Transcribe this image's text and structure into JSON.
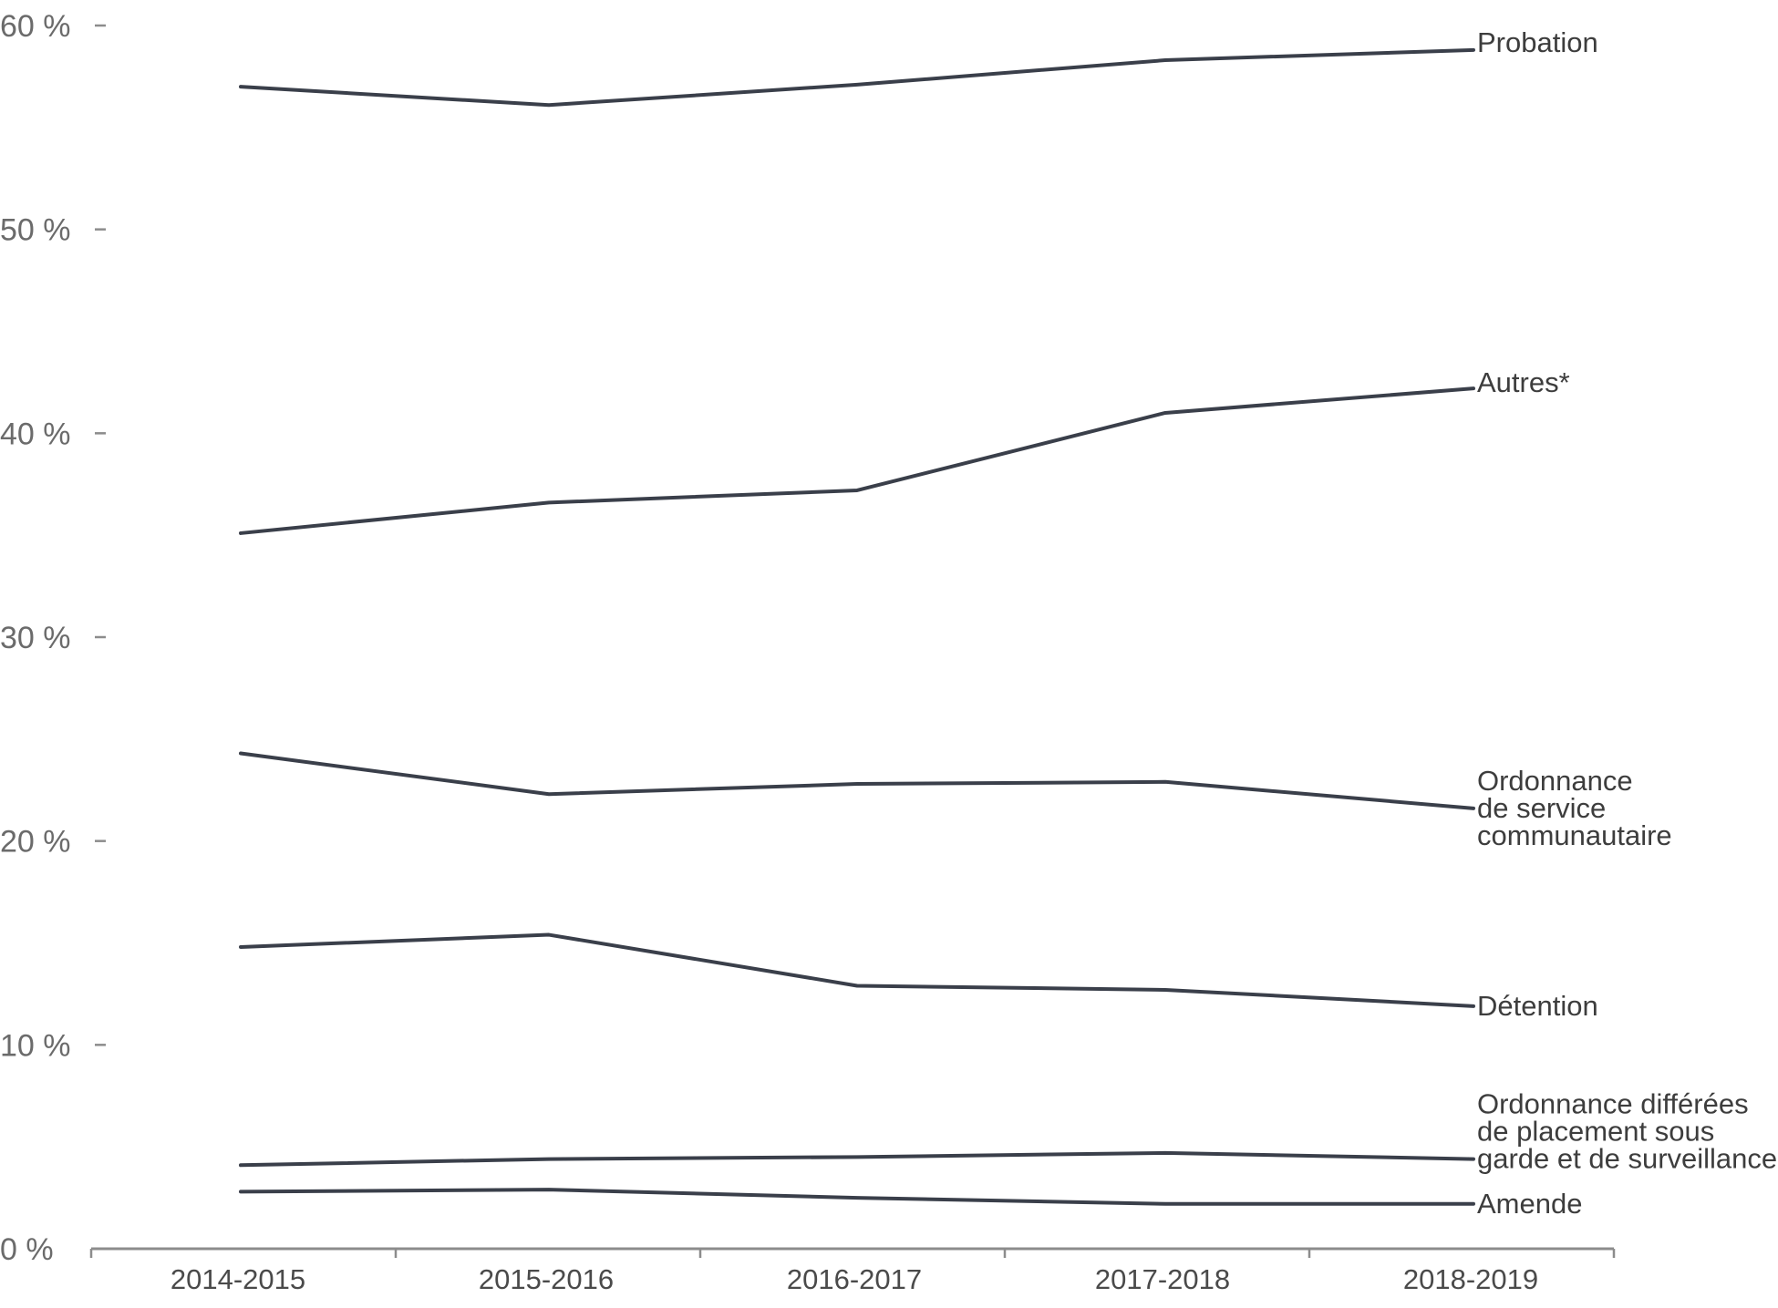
{
  "chart_data": {
    "type": "line",
    "title": "",
    "xlabel": "",
    "ylabel": "",
    "categories": [
      "2014-2015",
      "2015-2016",
      "2016-2017",
      "2017-2018",
      "2018-2019"
    ],
    "ylim": [
      0,
      60
    ],
    "yticks": [
      0,
      10,
      20,
      30,
      40,
      50,
      60
    ],
    "ytick_labels": [
      "0 %",
      "10 %",
      "20 %",
      "30 %",
      "40 %",
      "50 %",
      "60 %"
    ],
    "grid": false,
    "legend": "none (series labelled at right end of lines)",
    "line_color": "#3a3f4a",
    "axis_color": "#8c8c8c",
    "series": [
      {
        "name": "Probation",
        "label_lines": [
          "Probation"
        ],
        "values": [
          57.0,
          56.1,
          57.1,
          58.3,
          58.8
        ]
      },
      {
        "name": "Autres*",
        "label_lines": [
          "Autres*"
        ],
        "values": [
          35.1,
          36.6,
          37.2,
          41.0,
          42.2
        ]
      },
      {
        "name": "Ordonnance de service communautaire",
        "label_lines": [
          "Ordonnance",
          "de service",
          "communautaire"
        ],
        "values": [
          24.3,
          22.3,
          22.8,
          22.9,
          21.6
        ]
      },
      {
        "name": "Détention",
        "label_lines": [
          "Détention"
        ],
        "values": [
          14.8,
          15.4,
          12.9,
          12.7,
          11.9
        ]
      },
      {
        "name": "Ordonnance différées de placement sous garde et de surveillance",
        "label_lines": [
          "Ordonnance différées",
          "de placement sous",
          "garde et de surveillance"
        ],
        "values": [
          4.1,
          4.4,
          4.5,
          4.7,
          4.4
        ]
      },
      {
        "name": "Amende",
        "label_lines": [
          "Amende"
        ],
        "values": [
          2.8,
          2.9,
          2.5,
          2.2,
          2.2
        ]
      }
    ]
  }
}
